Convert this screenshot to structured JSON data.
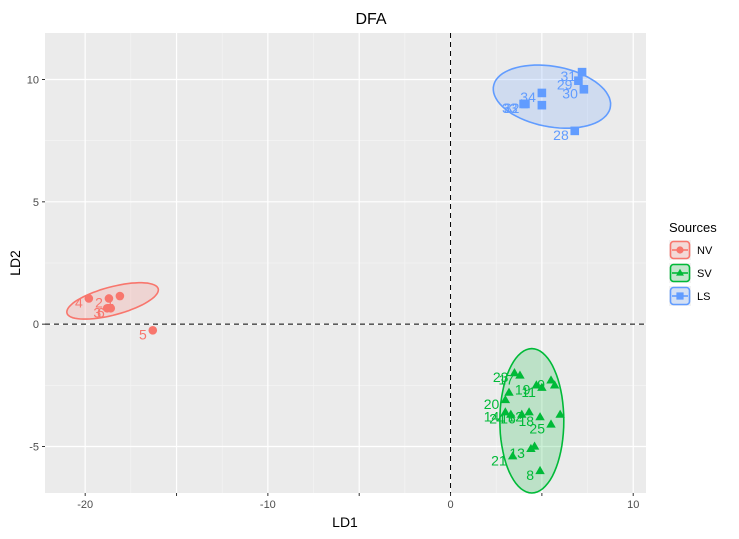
{
  "chart_data": {
    "type": "scatter",
    "title": "DFA",
    "xlabel": "LD1",
    "ylabel": "LD2",
    "xlim": [
      -22.2,
      10.7
    ],
    "ylim": [
      -6.9,
      11.9
    ],
    "x_ticks": [
      -20,
      -15,
      -10,
      -5,
      0,
      5,
      10
    ],
    "x_tick_labels": [
      "-20",
      "",
      "-10",
      "",
      "0",
      "",
      "10"
    ],
    "y_ticks": [
      -5,
      0,
      5,
      10
    ],
    "y_tick_labels": [
      "-5",
      "0",
      "5",
      "10"
    ],
    "reference_lines": {
      "x": 0,
      "y": 0,
      "style": "dashed"
    },
    "grid": true,
    "legend": {
      "title": "Sources",
      "placement": "right"
    },
    "series": [
      {
        "name": "NV",
        "color": "#f8766d",
        "marker": "circle",
        "ellipse": {
          "center": [
            -18.5,
            0.95
          ],
          "rx": 2.7,
          "ry": 0.55,
          "angle_deg": 24
        },
        "points": [
          {
            "x": -19.8,
            "y": 1.05,
            "label": "4"
          },
          {
            "x": -18.1,
            "y": 1.15,
            "label": "1"
          },
          {
            "x": -18.7,
            "y": 1.05,
            "label": "2"
          },
          {
            "x": -18.8,
            "y": 0.65,
            "label": "3"
          },
          {
            "x": -18.6,
            "y": 0.65,
            "label": "6"
          },
          {
            "x": -16.3,
            "y": -0.25,
            "label": "5"
          }
        ]
      },
      {
        "name": "SV",
        "color": "#00ba38",
        "marker": "triangle",
        "ellipse": {
          "center": [
            4.45,
            -3.95
          ],
          "rx": 1.75,
          "ry": 2.95,
          "angle_deg": 0
        },
        "points": [
          {
            "x": 3.5,
            "y": -2.0,
            "label": "23"
          },
          {
            "x": 3.8,
            "y": -2.1,
            "label": "17"
          },
          {
            "x": 4.7,
            "y": -2.5,
            "label": "19"
          },
          {
            "x": 5.0,
            "y": -2.6,
            "label": "11"
          },
          {
            "x": 5.5,
            "y": -2.3,
            "label": "9"
          },
          {
            "x": 5.7,
            "y": -2.5,
            "label": ""
          },
          {
            "x": 3.2,
            "y": -2.8,
            "label": ""
          },
          {
            "x": 3.0,
            "y": -3.1,
            "label": "20"
          },
          {
            "x": 3.0,
            "y": -3.6,
            "label": "14"
          },
          {
            "x": 3.3,
            "y": -3.7,
            "label": "24"
          },
          {
            "x": 3.9,
            "y": -3.7,
            "label": "16"
          },
          {
            "x": 4.3,
            "y": -3.6,
            "label": "12"
          },
          {
            "x": 4.9,
            "y": -3.8,
            "label": "18"
          },
          {
            "x": 6.0,
            "y": -3.7,
            "label": ""
          },
          {
            "x": 5.5,
            "y": -4.1,
            "label": "25"
          },
          {
            "x": 4.4,
            "y": -5.1,
            "label": "13"
          },
          {
            "x": 4.6,
            "y": -5.0,
            "label": ""
          },
          {
            "x": 3.4,
            "y": -5.4,
            "label": "21"
          },
          {
            "x": 4.9,
            "y": -6.0,
            "label": "8"
          }
        ]
      },
      {
        "name": "LS",
        "color": "#619cff",
        "marker": "square",
        "ellipse": {
          "center": [
            5.55,
            9.3
          ],
          "rx": 3.35,
          "ry": 1.2,
          "angle_deg": -24
        },
        "points": [
          {
            "x": 4.0,
            "y": 9.0,
            "label": "33"
          },
          {
            "x": 4.1,
            "y": 9.0,
            "label": "32"
          },
          {
            "x": 5.0,
            "y": 9.45,
            "label": "34"
          },
          {
            "x": 5.0,
            "y": 8.95,
            "label": ""
          },
          {
            "x": 7.0,
            "y": 9.95,
            "label": "29"
          },
          {
            "x": 7.2,
            "y": 10.3,
            "label": "31"
          },
          {
            "x": 7.3,
            "y": 9.6,
            "label": "30"
          },
          {
            "x": 6.8,
            "y": 7.9,
            "label": "28"
          }
        ]
      }
    ]
  }
}
